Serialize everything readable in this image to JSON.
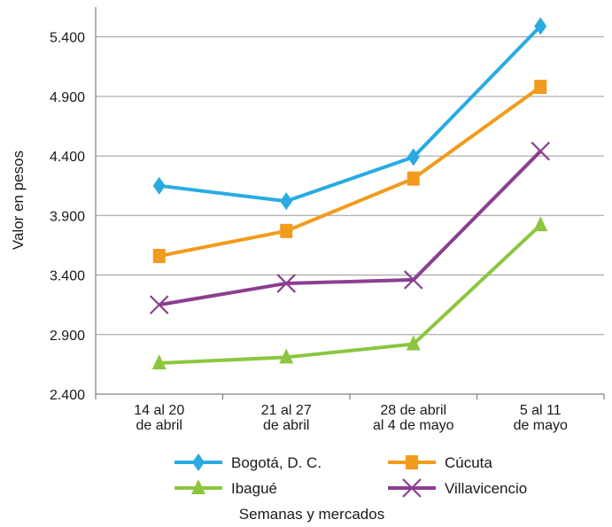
{
  "chart_data": {
    "type": "line",
    "ylabel": "Valor en pesos",
    "xlabel": "Semanas y mercados",
    "ylim": [
      2400,
      5650
    ],
    "yticks": [
      {
        "value": 2400,
        "label": "2.400"
      },
      {
        "value": 2900,
        "label": "2.900"
      },
      {
        "value": 3400,
        "label": "3.400"
      },
      {
        "value": 3900,
        "label": "3.900"
      },
      {
        "value": 4400,
        "label": "4.400"
      },
      {
        "value": 4900,
        "label": "4.900"
      },
      {
        "value": 5400,
        "label": "5.400"
      }
    ],
    "categories": [
      [
        "14 al 20",
        "de abril"
      ],
      [
        "21 al 27",
        "de abril"
      ],
      [
        "28 de abril",
        "al 4 de mayo"
      ],
      [
        "5 al 11",
        "de mayo"
      ]
    ],
    "grid": true,
    "legend_position": "bottom",
    "series": [
      {
        "name": "Bogotá, D. C.",
        "marker": "diamond",
        "color": "#29abe2",
        "values": [
          4150,
          4020,
          4390,
          5490
        ]
      },
      {
        "name": "Cúcuta",
        "marker": "square",
        "color": "#f29b1d",
        "values": [
          3560,
          3770,
          4210,
          4980
        ]
      },
      {
        "name": "Ibagué",
        "marker": "triangle",
        "color": "#8cc63f",
        "values": [
          2660,
          2710,
          2820,
          3820
        ]
      },
      {
        "name": "Villavicencio",
        "marker": "x",
        "color": "#8b3f8f",
        "values": [
          3150,
          3330,
          3360,
          4440
        ]
      }
    ]
  }
}
